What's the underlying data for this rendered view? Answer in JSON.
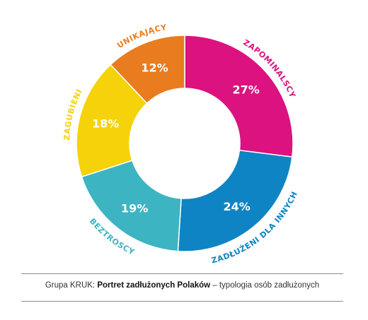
{
  "chart_data": {
    "type": "pie",
    "variant": "donut",
    "title": "",
    "slices": [
      {
        "label": "ZAPOMINALSCY",
        "value": 27,
        "display": "27%",
        "color": "#DB127F"
      },
      {
        "label": "ZADŁUŻENI DLA INNYCH",
        "value": 24,
        "display": "24%",
        "color": "#0F84C4"
      },
      {
        "label": "BEZTROSCY",
        "value": 19,
        "display": "19%",
        "color": "#3DB4C2"
      },
      {
        "label": "ZAGUBIENI",
        "value": 18,
        "display": "18%",
        "color": "#F5D20A"
      },
      {
        "label": "UNIKAJĄCY",
        "value": 12,
        "display": "12%",
        "color": "#E97C1E"
      }
    ],
    "legend": "none"
  },
  "caption": {
    "prefix": "Grupa KRUK: ",
    "title": "Portret zadłużonych Polaków",
    "suffix": " – typologia osób zadłużonych"
  }
}
